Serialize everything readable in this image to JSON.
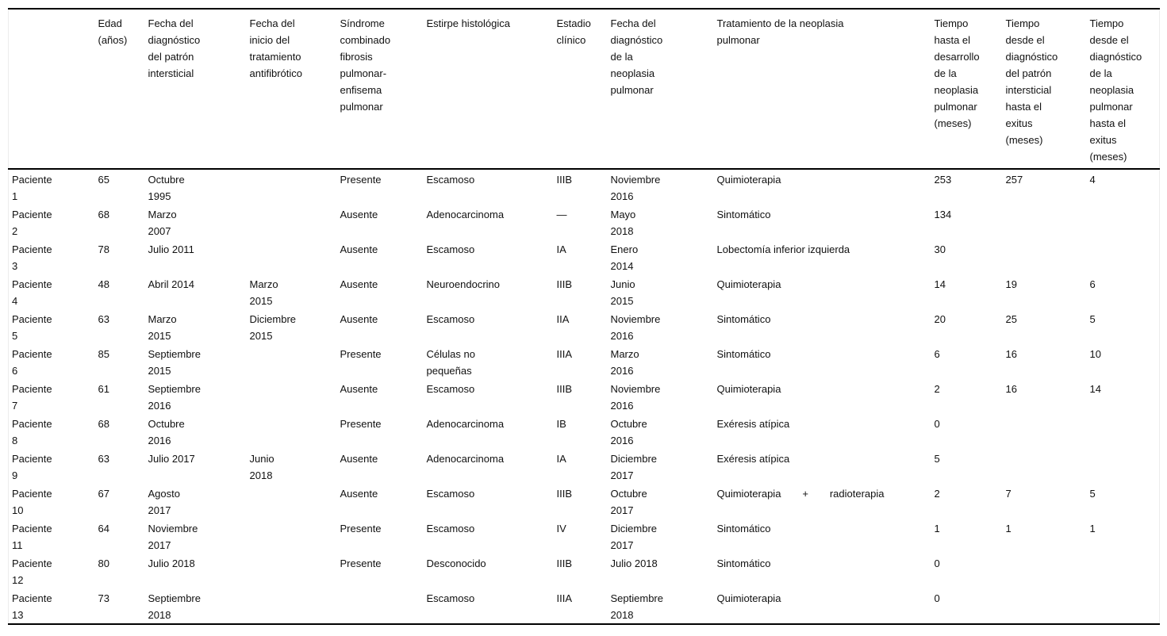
{
  "style": {
    "text_color": "#111111",
    "rule_color": "#000000",
    "side_border_color": "#ececec",
    "background": "#ffffff"
  },
  "table": {
    "columns": [
      "",
      "Edad (años)",
      "Fecha del diagnóstico del patrón intersticial",
      "Fecha del inicio del tratamiento antifibrótico",
      "Síndrome combinado fibrosis pulmonar-enfisema pulmonar",
      "Estirpe histológica",
      "Estadio clínico",
      "Fecha del diagnóstico de la neoplasia pulmonar",
      "Tratamiento de la neoplasia pulmonar",
      "Tiempo hasta el desarrollo de la neoplasia pulmonar (meses)",
      "Tiempo desde el diagnóstico del patrón intersticial hasta el exitus (meses)",
      "Tiempo desde el diagnóstico de la neoplasia pulmonar hasta el exitus (meses)"
    ],
    "rows": [
      [
        "Paciente 1",
        "65",
        "Octubre 1995",
        "",
        "Presente",
        "Escamoso",
        "IIIB",
        "Noviembre 2016",
        "Quimioterapia",
        "253",
        "257",
        "4"
      ],
      [
        "Paciente 2",
        "68",
        "Marzo 2007",
        "",
        "Ausente",
        "Adenocarcinoma",
        "—",
        "Mayo 2018",
        "Sintomático",
        "134",
        "",
        ""
      ],
      [
        "Paciente 3",
        "78",
        "Julio 2011",
        "",
        "Ausente",
        "Escamoso",
        "IA",
        "Enero 2014",
        "Lobectomía inferior izquierda",
        "30",
        "",
        ""
      ],
      [
        "Paciente 4",
        "48",
        "Abril 2014",
        "Marzo 2015",
        "Ausente",
        "Neuroendocrino",
        "IIIB",
        "Junio 2015",
        "Quimioterapia",
        "14",
        "19",
        "6"
      ],
      [
        "Paciente 5",
        "63",
        "Marzo 2015",
        "Diciembre 2015",
        "Ausente",
        "Escamoso",
        "IIA",
        "Noviembre 2016",
        "Sintomático",
        "20",
        "25",
        "5"
      ],
      [
        "Paciente 6",
        "85",
        "Septiembre 2015",
        "",
        "Presente",
        "Células no pequeñas",
        "IIIA",
        "Marzo 2016",
        "Sintomático",
        "6",
        "16",
        "10"
      ],
      [
        "Paciente 7",
        "61",
        "Septiembre 2016",
        "",
        "Ausente",
        "Escamoso",
        "IIIB",
        "Noviembre 2016",
        "Quimioterapia",
        "2",
        "16",
        "14"
      ],
      [
        "Paciente 8",
        "68",
        "Octubre 2016",
        "",
        "Presente",
        "Adenocarcinoma",
        "IB",
        "Octubre 2016",
        "Exéresis atípica",
        "0",
        "",
        ""
      ],
      [
        "Paciente 9",
        "63",
        "Julio 2017",
        "Junio 2018",
        "Ausente",
        "Adenocarcinoma",
        "IA",
        "Diciembre 2017",
        "Exéresis atípica",
        "5",
        "",
        ""
      ],
      [
        "Paciente 10",
        "67",
        "Agosto 2017",
        "",
        "Ausente",
        "Escamoso",
        "IIIB",
        "Octubre 2017",
        {
          "text": "Quimioterapia + radioterapia",
          "justify": true
        },
        "2",
        "7",
        "5"
      ],
      [
        "Paciente 11",
        "64",
        "Noviembre 2017",
        "",
        "Presente",
        "Escamoso",
        "IV",
        "Diciembre 2017",
        "Sintomático",
        "1",
        "1",
        "1"
      ],
      [
        "Paciente 12",
        "80",
        "Julio 2018",
        "",
        "Presente",
        "Desconocido",
        "IIIB",
        "Julio 2018",
        "Sintomático",
        "0",
        "",
        ""
      ],
      [
        "Paciente 13",
        "73",
        "Septiembre 2018",
        "",
        "",
        "Escamoso",
        "IIIA",
        "Septiembre 2018",
        "Quimioterapia",
        "0",
        "",
        ""
      ]
    ]
  }
}
